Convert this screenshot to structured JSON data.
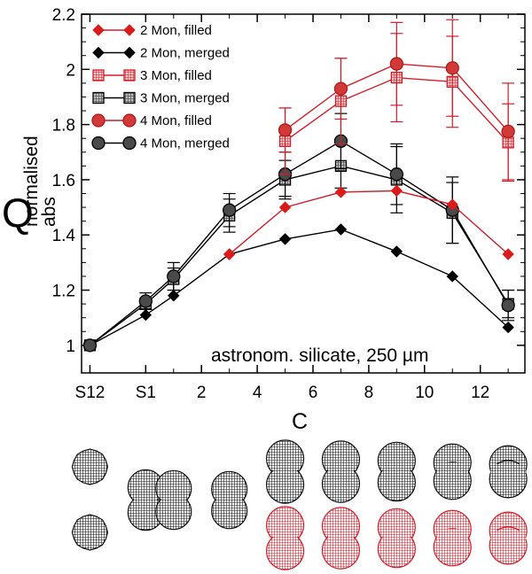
{
  "chart_data": {
    "type": "line",
    "title": "",
    "xlabel": "C",
    "ylabel_main": "Q",
    "ylabel_sup": "normalised",
    "ylabel_sub": "abs",
    "ylim": [
      0.9,
      2.2
    ],
    "yticks": [
      1,
      1.2,
      1.4,
      1.6,
      1.8,
      2,
      2.2
    ],
    "ytick_labels": [
      "1",
      "1.2",
      "1.4",
      "1.6",
      "1.8",
      "2",
      "2.2"
    ],
    "xlim": [
      -2.3,
      13.6
    ],
    "xticks": [
      -2,
      0,
      2,
      4,
      6,
      8,
      10,
      12
    ],
    "xtick_labels": [
      "S12",
      "S1",
      "2",
      "4",
      "6",
      "8",
      "10",
      "12"
    ],
    "annotation": "astronom. silicate, 250 µm",
    "legend_position": "top-left",
    "colors": {
      "red": "#dd1a1a",
      "black": "#000000",
      "light_red": "#f0a0a0",
      "grey": "#808080",
      "dark_grey": "#505050",
      "filled_red": "#cc3333"
    },
    "series": [
      {
        "name": "2 Mon, filled",
        "marker": "diamond",
        "color": "#dd1a1a",
        "x": [
          3,
          5,
          7,
          9,
          11,
          13
        ],
        "y": [
          1.33,
          1.5,
          1.555,
          1.56,
          1.51,
          1.33
        ],
        "err": null
      },
      {
        "name": "2 Mon, merged",
        "marker": "diamond",
        "color": "#000000",
        "x": [
          -2,
          0,
          1,
          3,
          5,
          7,
          9,
          11,
          13
        ],
        "y": [
          1.0,
          1.11,
          1.18,
          1.33,
          1.385,
          1.42,
          1.34,
          1.25,
          1.065
        ],
        "err": null
      },
      {
        "name": "3 Mon, filled",
        "marker": "square",
        "color": "#dd1a1a",
        "x": [
          5,
          7,
          9,
          11,
          13
        ],
        "y": [
          1.74,
          1.885,
          1.97,
          1.955,
          1.735
        ],
        "err": [
          0.12,
          0.155,
          0.16,
          0.165,
          0.14
        ]
      },
      {
        "name": "3 Mon, merged",
        "marker": "square",
        "color": "#000000",
        "x": [
          -2,
          0,
          1,
          3,
          5,
          7,
          9,
          11,
          13
        ],
        "y": [
          1.0,
          1.15,
          1.24,
          1.47,
          1.6,
          1.65,
          1.6,
          1.48,
          1.15
        ],
        "err": [
          0,
          0.02,
          0.04,
          0.06,
          0.07,
          0.08,
          0.12,
          0.11,
          0.05
        ]
      },
      {
        "name": "4 Mon, filled",
        "marker": "circle",
        "color": "#dd1a1a",
        "x": [
          5,
          7,
          9,
          11,
          13
        ],
        "y": [
          1.78,
          1.93,
          2.02,
          2.005,
          1.775
        ],
        "err": [
          0.08,
          0.11,
          0.15,
          0.175,
          0.175
        ]
      },
      {
        "name": "4 Mon, merged",
        "marker": "circle",
        "color": "#000000",
        "x": [
          -2,
          0,
          1,
          3,
          5,
          7,
          9,
          11,
          13
        ],
        "y": [
          1.0,
          1.16,
          1.25,
          1.49,
          1.62,
          1.74,
          1.62,
          1.49,
          1.145
        ],
        "err": [
          0,
          0.03,
          0.05,
          0.06,
          0.08,
          0.1,
          0.11,
          0.12,
          0.055
        ]
      }
    ]
  },
  "shapes_panel": {
    "columns": [
      {
        "x": -2,
        "kind": "merged",
        "monomers": 1,
        "merge": 0,
        "color": "black"
      },
      {
        "x": 0,
        "kind": "merged",
        "monomers": 2,
        "merge": 0.35,
        "color": "black"
      },
      {
        "x": 1,
        "kind": "merged",
        "monomers": 2,
        "merge": 0.45,
        "color": "black"
      },
      {
        "x": 3,
        "kind": "merged",
        "monomers": 2,
        "merge": 0.55,
        "color": "black"
      },
      {
        "x": 5,
        "kind": "pair",
        "monomers": 2,
        "merge": 0.3
      },
      {
        "x": 7,
        "kind": "pair",
        "monomers": 2,
        "merge": 0.4
      },
      {
        "x": 9,
        "kind": "pair",
        "monomers": 2,
        "merge": 0.55
      },
      {
        "x": 11,
        "kind": "pair",
        "monomers": 2,
        "merge": 0.75
      },
      {
        "x": 13,
        "kind": "pair",
        "monomers": 2,
        "merge": 0.95
      }
    ]
  }
}
